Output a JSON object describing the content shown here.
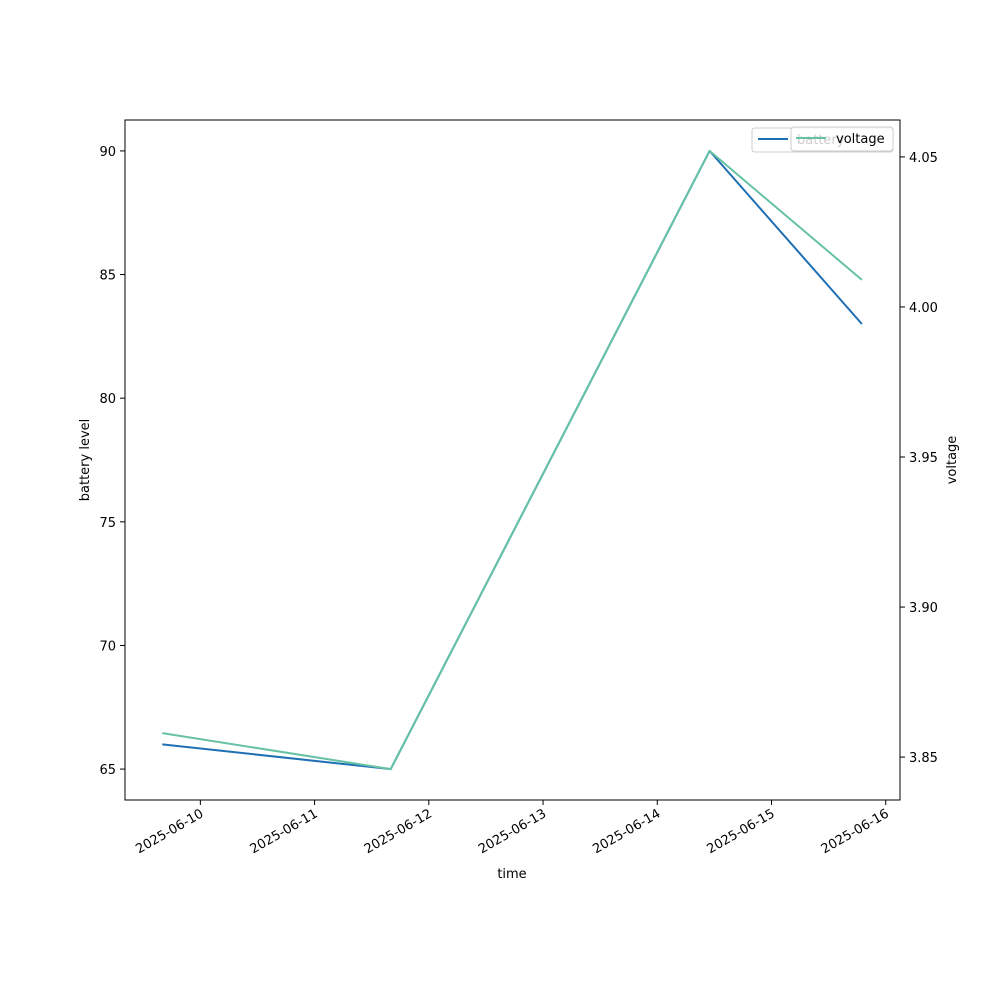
{
  "chart_data": {
    "type": "line",
    "xlabel": "time",
    "ylabel": "battery level",
    "y2label": "voltage",
    "x": [
      "2025-06-09 16:00",
      "2025-06-11 16:00",
      "2025-06-14 11:00",
      "2025-06-15 19:00"
    ],
    "series": [
      {
        "name": "battery",
        "axis": "left",
        "color": "#1f6fb4",
        "values": [
          66,
          65,
          90,
          83
        ]
      },
      {
        "name": "voltage",
        "axis": "right",
        "color": "#66c2a5",
        "values": [
          3.858,
          3.846,
          4.052,
          4.009
        ]
      }
    ],
    "x_ticks": [
      "2025-06-10",
      "2025-06-11",
      "2025-06-12",
      "2025-06-13",
      "2025-06-14",
      "2025-06-15",
      "2025-06-16"
    ],
    "y_ticks": [
      65,
      70,
      75,
      80,
      85,
      90
    ],
    "y2_ticks": [
      "3.85",
      "3.90",
      "3.95",
      "4.00",
      "4.05"
    ],
    "xlim": [
      "2025-06-09 08:10",
      "2025-06-16 03:00"
    ],
    "ylim": [
      63.75,
      91.25
    ],
    "y2lim": [
      3.8357,
      4.0623
    ],
    "legend": {
      "position": "top-right",
      "entries": [
        "battery",
        "voltage"
      ]
    },
    "grid": false
  }
}
